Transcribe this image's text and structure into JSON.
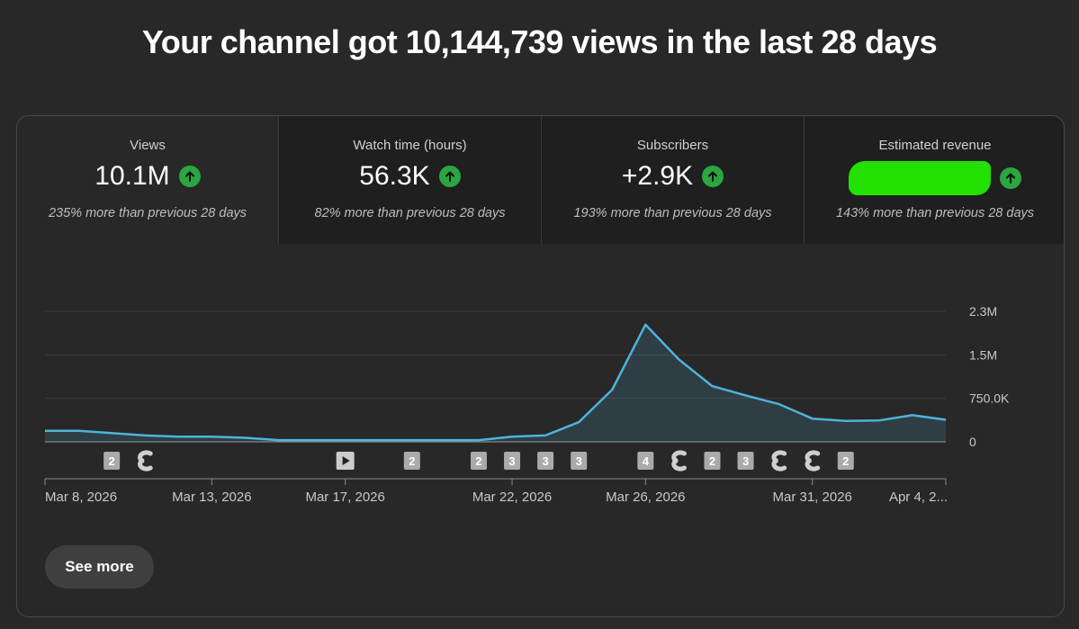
{
  "headline": "Your channel got 10,144,739 views in the last 28 days",
  "metrics": [
    {
      "label": "Views",
      "value": "10.1M",
      "change": "235% more than previous 28 days",
      "trend": "up"
    },
    {
      "label": "Watch time (hours)",
      "value": "56.3K",
      "change": "82% more than previous 28 days",
      "trend": "up"
    },
    {
      "label": "Subscribers",
      "value": "+2.9K",
      "change": "193% more than previous 28 days",
      "trend": "up"
    },
    {
      "label": "Estimated revenue",
      "value": "",
      "change": "143% more than previous 28 days",
      "trend": "up",
      "redacted": true
    }
  ],
  "see_more_label": "See more",
  "colors": {
    "accent_line": "#4fb3d9",
    "trend_up": "#2ba640",
    "redaction": "#22e000"
  },
  "chart_data": {
    "type": "area",
    "title": "Views",
    "x_labels": [
      "Mar 8, 2026",
      "Mar 13, 2026",
      "Mar 17, 2026",
      "Mar 22, 2026",
      "Mar 26, 2026",
      "Mar 31, 2026",
      "Apr 4, 2..."
    ],
    "x_label_days": [
      0,
      5,
      9,
      14,
      18,
      23,
      27
    ],
    "y_ticks": [
      "2.3M",
      "1.5M",
      "750.0K",
      "0"
    ],
    "y_tick_values": [
      2250000,
      1500000,
      750000,
      0
    ],
    "ylim": [
      0,
      2250000
    ],
    "series": [
      {
        "name": "Views",
        "days": [
          0,
          1,
          2,
          3,
          4,
          5,
          6,
          7,
          8,
          9,
          10,
          11,
          12,
          13,
          14,
          15,
          16,
          17,
          18,
          19,
          20,
          21,
          22,
          23,
          24,
          25,
          26,
          27
        ],
        "values": [
          190000,
          190000,
          150000,
          110000,
          90000,
          90000,
          70000,
          30000,
          30000,
          30000,
          30000,
          30000,
          30000,
          30000,
          90000,
          110000,
          340000,
          900000,
          2020000,
          1420000,
          960000,
          800000,
          650000,
          400000,
          360000,
          370000,
          460000,
          380000
        ]
      }
    ],
    "upload_markers": [
      {
        "day": 2,
        "type": "count",
        "label": "2"
      },
      {
        "day": 3,
        "type": "short",
        "label": ""
      },
      {
        "day": 9,
        "type": "video",
        "label": ""
      },
      {
        "day": 11,
        "type": "count",
        "label": "2"
      },
      {
        "day": 13,
        "type": "count",
        "label": "2"
      },
      {
        "day": 14,
        "type": "count",
        "label": "3"
      },
      {
        "day": 15,
        "type": "count",
        "label": "3"
      },
      {
        "day": 16,
        "type": "count",
        "label": "3"
      },
      {
        "day": 18,
        "type": "count",
        "label": "4"
      },
      {
        "day": 19,
        "type": "short",
        "label": ""
      },
      {
        "day": 20,
        "type": "count",
        "label": "2"
      },
      {
        "day": 21,
        "type": "count",
        "label": "3"
      },
      {
        "day": 22,
        "type": "short",
        "label": ""
      },
      {
        "day": 23,
        "type": "short",
        "label": ""
      },
      {
        "day": 24,
        "type": "count",
        "label": "2"
      }
    ]
  }
}
